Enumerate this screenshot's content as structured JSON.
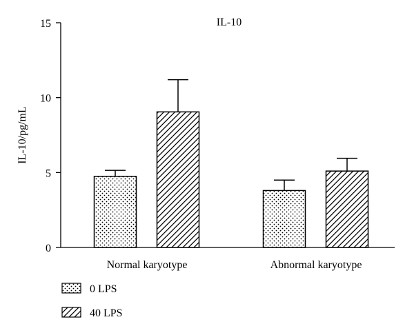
{
  "chart_data": {
    "type": "bar",
    "title": "IL-10",
    "xlabel": "",
    "ylabel": "IL-10/pg/mL",
    "ylim": [
      0,
      15
    ],
    "yticks": [
      0,
      5,
      10,
      15
    ],
    "categories": [
      "Normal karyotype",
      "Abnormal karyotype"
    ],
    "series": [
      {
        "name": "0 LPS",
        "pattern": "dots",
        "values": [
          4.75,
          3.8
        ],
        "errors": [
          0.4,
          0.7
        ]
      },
      {
        "name": "40 LPS",
        "pattern": "hatch",
        "values": [
          9.05,
          5.1
        ],
        "errors": [
          2.15,
          0.85
        ]
      }
    ],
    "legend_position": "bottom-left",
    "grid": false
  }
}
